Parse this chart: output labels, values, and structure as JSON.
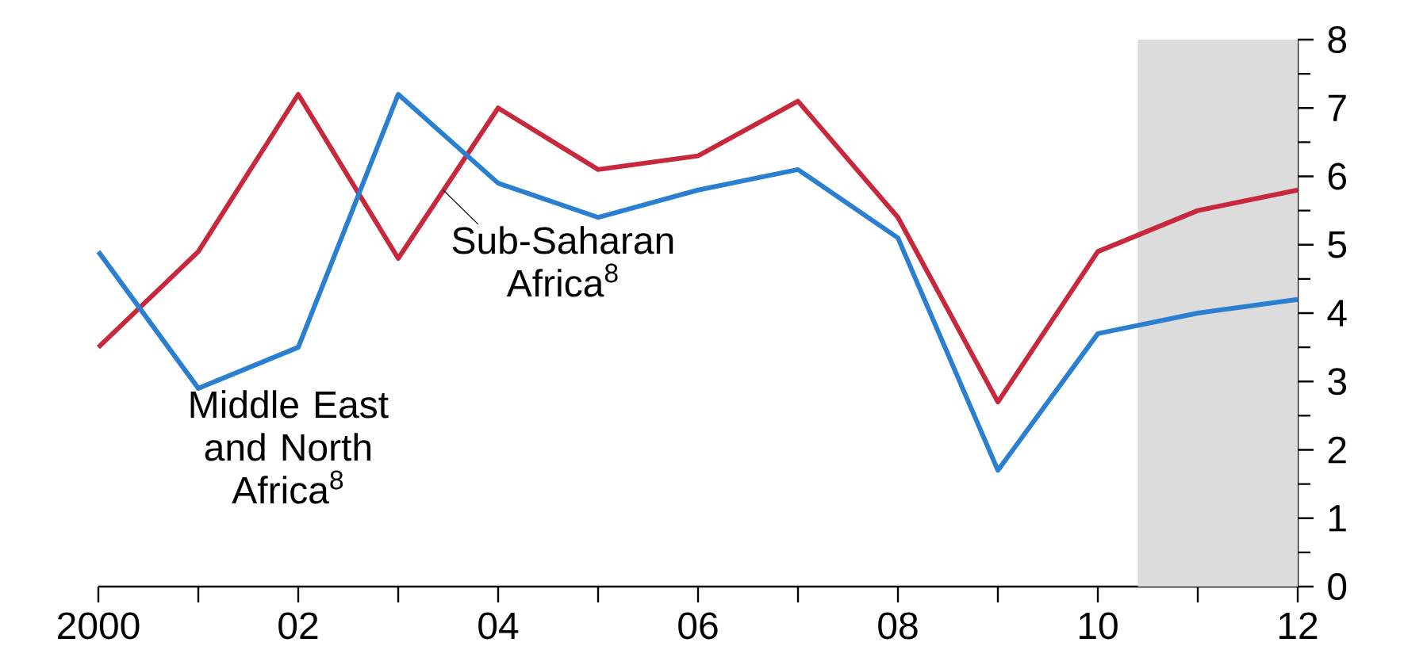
{
  "chart_data": {
    "type": "line",
    "x": [
      2000,
      2001,
      2002,
      2003,
      2004,
      2005,
      2006,
      2007,
      2008,
      2009,
      2010,
      2011,
      2012
    ],
    "series": [
      {
        "name": "Sub-Saharan Africa$^{8}$",
        "color": "#c8283c",
        "values": [
          3.5,
          4.9,
          7.2,
          4.8,
          7.0,
          6.1,
          6.3,
          7.1,
          5.4,
          2.7,
          4.9,
          5.5,
          5.8
        ]
      },
      {
        "name": "Middle East and North Africa$^{8}$",
        "color": "#2a7fd0",
        "values": [
          4.9,
          2.9,
          3.5,
          7.2,
          5.9,
          5.4,
          5.8,
          6.1,
          5.1,
          1.7,
          3.7,
          4.0,
          4.2
        ]
      }
    ],
    "xlim": [
      2000,
      2012
    ],
    "xticks": [
      {
        "value": 2000,
        "label": "2000"
      },
      {
        "value": 2001,
        "label": null
      },
      {
        "value": 2002,
        "label": "02"
      },
      {
        "value": 2003,
        "label": null
      },
      {
        "value": 2004,
        "label": "04"
      },
      {
        "value": 2005,
        "label": null
      },
      {
        "value": 2006,
        "label": "06"
      },
      {
        "value": 2007,
        "label": null
      },
      {
        "value": 2008,
        "label": "08"
      },
      {
        "value": 2009,
        "label": null
      },
      {
        "value": 2010,
        "label": "10"
      },
      {
        "value": 2011,
        "label": null
      },
      {
        "value": 2012,
        "label": "12"
      }
    ],
    "ylim": [
      0,
      8
    ],
    "yticks": [
      0,
      1,
      2,
      3,
      4,
      5,
      6,
      7,
      8
    ],
    "bands": [
      {
        "axis": "x",
        "from": 2010.4,
        "to": 2012,
        "color": "#dcdcdc"
      }
    ],
    "grid": false,
    "line_style": "solid",
    "marker": "none"
  }
}
